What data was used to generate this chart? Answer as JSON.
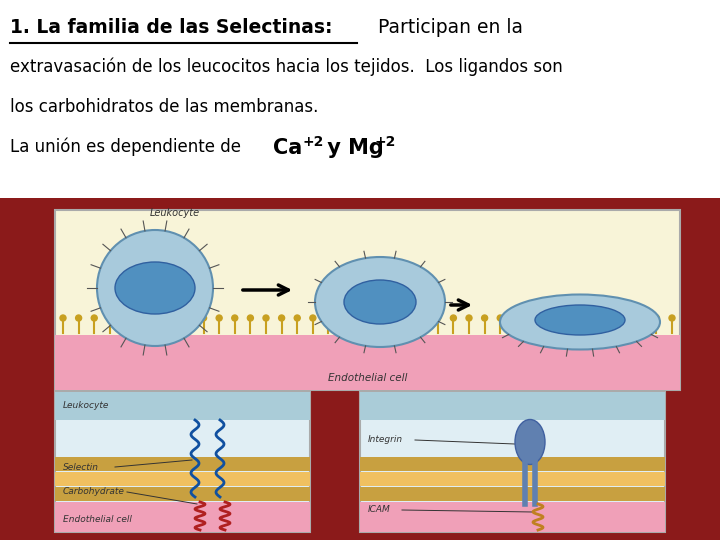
{
  "background_color": "#8B1A1A",
  "slide_bg": "#FFFFFF",
  "title_bold_text": "1. La familia de las Selectinas:",
  "title_normal_text": "   Participan en la",
  "body_line1": "extravasación de los leucocitos hacia los tejidos.  Los ligandos son",
  "body_line2": "los carbohidratos de las membranas.",
  "body_line3_normal": "La unión es dependiente de  ",
  "body_line3_ca": "Ca",
  "body_line3_sup1": "+2",
  "body_line3_mid": " y Mg",
  "body_line3_sup2": "+2",
  "text_color": "#000000",
  "title_fontsize": 13.5,
  "body_fontsize": 12,
  "top_panel_bg": "#F8F4D8",
  "endothelial_color": "#F0A0B8",
  "leukocyte_blue": "#A8CADC",
  "leukocyte_edge": "#6090B0",
  "nucleus_blue": "#5090C0",
  "nucleus_edge": "#3060A0",
  "selectin_blue": "#1050A0",
  "carbohydrate_red": "#B02020",
  "integrin_blue": "#6080B0",
  "icam_gold": "#C08020",
  "spike_color": "#C8A020",
  "panel_edge": "#AAAAAA",
  "arrow_color": "#000000",
  "label_color": "#333333",
  "bl_bg": "#E0EEF4",
  "br_bg": "#E0EEF4",
  "leu_region_color": "#AACCD8",
  "mem_colors": [
    "#C8A040",
    "#F0C060",
    "#C8A040"
  ],
  "dashed_line_color": "#AAAAAA"
}
